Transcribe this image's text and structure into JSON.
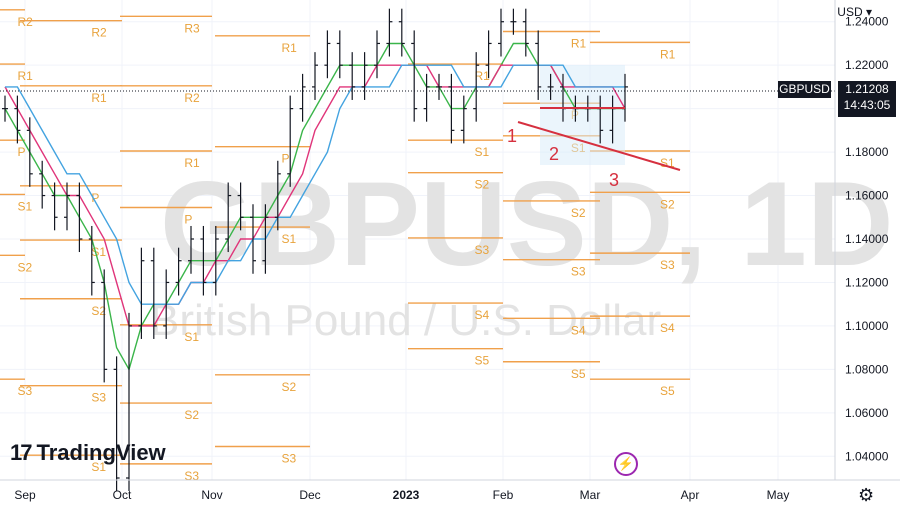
{
  "currency": "USD",
  "chevron": "▾",
  "price_tag": {
    "symbol": "GBPUSD",
    "price": "1.21208",
    "countdown": "14:43:05"
  },
  "watermark": {
    "symbol": "GBPUSD, 1D",
    "name": "British Pound / U.S. Dollar"
  },
  "logo": {
    "mark": "17",
    "text": "TradingView"
  },
  "colors": {
    "bull_bear": "#131722",
    "pivot": "#f0a04b",
    "ma_fast": "#3ab54a",
    "ma_mid": "#e0357a",
    "ma_slow": "#43a3e0",
    "trend": "#d6303f"
  },
  "icons": {
    "settings": "gear-icon",
    "alert": "lightning-icon"
  },
  "chart_data": {
    "type": "line",
    "title": "",
    "xlabel": "",
    "ylabel": "",
    "ylim": [
      1.03,
      1.25
    ],
    "x_ticks": [
      "Sep",
      "Oct",
      "Nov",
      "Dec",
      "2023",
      "Feb",
      "Mar",
      "Apr",
      "May"
    ],
    "y_ticks": [
      "1.24000",
      "1.22000",
      "1.20000",
      "1.18000",
      "1.16000",
      "1.14000",
      "1.12000",
      "1.10000",
      "1.08000",
      "1.06000",
      "1.04000"
    ],
    "y_tick_values": [
      1.24,
      1.22,
      1.2,
      1.18,
      1.16,
      1.14,
      1.12,
      1.1,
      1.08,
      1.06,
      1.04
    ],
    "last_price": 1.21208,
    "series": [
      {
        "values": [
          1.2,
          1.19,
          1.17,
          1.16,
          1.15,
          1.16,
          1.14,
          1.12,
          1.08,
          1.03,
          1.1,
          1.13,
          1.1,
          1.12,
          1.13,
          1.14,
          1.12,
          1.14,
          1.16,
          1.15,
          1.13,
          1.15,
          1.17,
          1.2,
          1.21,
          1.22,
          1.23,
          1.22,
          1.21,
          1.22,
          1.23,
          1.24,
          1.23,
          1.2,
          1.21,
          1.21,
          1.19,
          1.2,
          1.22,
          1.23,
          1.24,
          1.24,
          1.23,
          1.21,
          1.21,
          1.2,
          1.2,
          1.2,
          1.19,
          1.2,
          1.21
        ]
      },
      {
        "values": [
          1.2,
          1.19,
          1.18,
          1.17,
          1.16,
          1.16,
          1.15,
          1.14,
          1.12,
          1.09,
          1.08,
          1.1,
          1.11,
          1.11,
          1.12,
          1.13,
          1.13,
          1.13,
          1.14,
          1.15,
          1.15,
          1.15,
          1.16,
          1.17,
          1.19,
          1.2,
          1.21,
          1.22,
          1.22,
          1.22,
          1.22,
          1.23,
          1.23,
          1.22,
          1.21,
          1.21,
          1.2,
          1.2,
          1.21,
          1.21,
          1.22,
          1.23,
          1.23,
          1.22,
          1.22,
          1.21,
          1.2,
          1.2,
          1.2,
          1.2,
          1.2
        ]
      },
      {
        "values": [
          1.21,
          1.2,
          1.19,
          1.18,
          1.17,
          1.16,
          1.16,
          1.15,
          1.14,
          1.12,
          1.1,
          1.1,
          1.1,
          1.11,
          1.11,
          1.12,
          1.12,
          1.13,
          1.13,
          1.14,
          1.14,
          1.15,
          1.15,
          1.16,
          1.17,
          1.19,
          1.2,
          1.21,
          1.21,
          1.21,
          1.22,
          1.22,
          1.22,
          1.22,
          1.22,
          1.21,
          1.21,
          1.21,
          1.21,
          1.21,
          1.22,
          1.22,
          1.22,
          1.22,
          1.22,
          1.21,
          1.21,
          1.21,
          1.21,
          1.21,
          1.2
        ]
      },
      {
        "values": [
          1.21,
          1.21,
          1.2,
          1.19,
          1.18,
          1.17,
          1.17,
          1.16,
          1.15,
          1.14,
          1.12,
          1.11,
          1.11,
          1.11,
          1.11,
          1.12,
          1.12,
          1.12,
          1.13,
          1.13,
          1.14,
          1.14,
          1.15,
          1.15,
          1.16,
          1.17,
          1.18,
          1.2,
          1.21,
          1.21,
          1.21,
          1.21,
          1.22,
          1.22,
          1.22,
          1.22,
          1.22,
          1.21,
          1.21,
          1.21,
          1.21,
          1.22,
          1.22,
          1.22,
          1.22,
          1.22,
          1.21,
          1.21,
          1.21,
          1.21,
          1.21
        ]
      }
    ],
    "pivots": [
      {
        "label": "R2",
        "value": 1.2455,
        "col": 0
      },
      {
        "label": "R1",
        "value": 1.2205,
        "col": 0
      },
      {
        "label": "P",
        "value": 1.1855,
        "col": 0
      },
      {
        "label": "S1",
        "value": 1.1605,
        "col": 0
      },
      {
        "label": "S2",
        "value": 1.1325,
        "col": 0
      },
      {
        "label": "S3",
        "value": 1.0755,
        "col": 0
      },
      {
        "label": "R2",
        "value": 1.2405,
        "col": 1
      },
      {
        "label": "R1",
        "value": 1.2105,
        "col": 1
      },
      {
        "label": "P",
        "value": 1.1645,
        "col": 1
      },
      {
        "label": "S1",
        "value": 1.1395,
        "col": 1
      },
      {
        "label": "S2",
        "value": 1.1125,
        "col": 1
      },
      {
        "label": "S3",
        "value": 1.0725,
        "col": 1
      },
      {
        "label": "S1",
        "value": 1.0405,
        "col": 1
      },
      {
        "label": "R3",
        "value": 1.2425,
        "col": 2
      },
      {
        "label": "R2",
        "value": 1.2105,
        "col": 2
      },
      {
        "label": "R1",
        "value": 1.1805,
        "col": 2
      },
      {
        "label": "P",
        "value": 1.1545,
        "col": 2
      },
      {
        "label": "S1",
        "value": 1.1005,
        "col": 2
      },
      {
        "label": "S2",
        "value": 1.0645,
        "col": 2
      },
      {
        "label": "S3",
        "value": 1.0365,
        "col": 2
      },
      {
        "label": "R1",
        "value": 1.2335,
        "col": 3
      },
      {
        "label": "P",
        "value": 1.1825,
        "col": 3
      },
      {
        "label": "S1",
        "value": 1.1455,
        "col": 3
      },
      {
        "label": "S2",
        "value": 1.0775,
        "col": 3
      },
      {
        "label": "S3",
        "value": 1.0445,
        "col": 3
      },
      {
        "label": "R1",
        "value": 1.2205,
        "col": 4
      },
      {
        "label": "S1",
        "value": 1.1855,
        "col": 4
      },
      {
        "label": "S2",
        "value": 1.1705,
        "col": 4
      },
      {
        "label": "S3",
        "value": 1.1405,
        "col": 4
      },
      {
        "label": "S4",
        "value": 1.1105,
        "col": 4
      },
      {
        "label": "S5",
        "value": 1.0895,
        "col": 4
      },
      {
        "label": "R1",
        "value": 1.2355,
        "col": 5
      },
      {
        "label": "P",
        "value": 1.2025,
        "col": 5
      },
      {
        "label": "S1",
        "value": 1.1875,
        "col": 5
      },
      {
        "label": "S2",
        "value": 1.1575,
        "col": 5
      },
      {
        "label": "S3",
        "value": 1.1305,
        "col": 5
      },
      {
        "label": "S4",
        "value": 1.1035,
        "col": 5
      },
      {
        "label": "S5",
        "value": 1.0835,
        "col": 5
      },
      {
        "label": "R1",
        "value": 1.2305,
        "col": 6
      },
      {
        "label": "S1",
        "value": 1.1805,
        "col": 6
      },
      {
        "label": "S2",
        "value": 1.1615,
        "col": 6
      },
      {
        "label": "S3",
        "value": 1.1335,
        "col": 6
      },
      {
        "label": "S4",
        "value": 1.1045,
        "col": 6
      },
      {
        "label": "S5",
        "value": 1.0755,
        "col": 6
      }
    ],
    "wave_labels": [
      "1",
      "2",
      "3"
    ]
  }
}
